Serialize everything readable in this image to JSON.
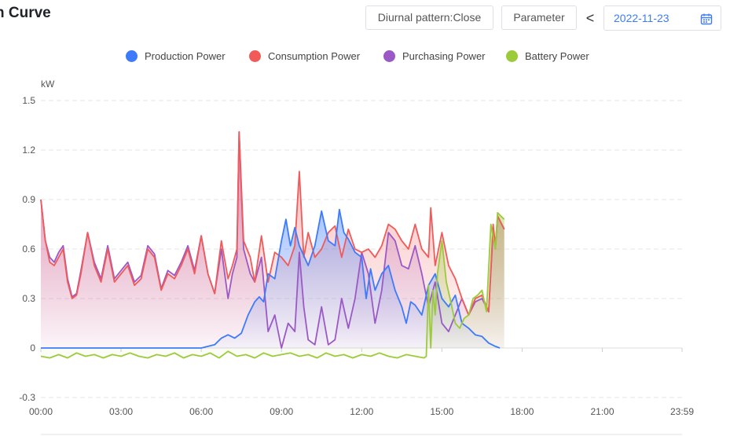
{
  "header": {
    "title": "n Curve",
    "pattern_button": "Diurnal pattern:Close",
    "parameter_button": "Parameter",
    "prev_icon": "chevron-left-icon",
    "date": "2022-11-23",
    "calendar_icon": "calendar-icon"
  },
  "legend": [
    {
      "label": "Production Power",
      "color": "#3e7bfa"
    },
    {
      "label": "Consumption Power",
      "color": "#f25a5a"
    },
    {
      "label": "Purchasing Power",
      "color": "#9b59c6"
    },
    {
      "label": "Battery Power",
      "color": "#9ccb3a"
    }
  ],
  "chart_data": {
    "type": "area",
    "y_unit": "kW",
    "ylim": [
      -0.3,
      1.5
    ],
    "y_ticks": [
      "1.5",
      "1.2",
      "0.9",
      "0.6",
      "0.3",
      "0",
      "-0.3"
    ],
    "x_range": [
      "00:00",
      "23:59"
    ],
    "x_ticks": [
      "00:00",
      "03:00",
      "06:00",
      "09:00",
      "12:00",
      "15:00",
      "18:00",
      "21:00",
      "23:59"
    ],
    "grid": "horizontal dashed",
    "legend_position": "top-center",
    "series": [
      {
        "name": "Production Power",
        "color": "#3e7bfa",
        "points": [
          [
            "00:00",
            0.0
          ],
          [
            "06:00",
            0.0
          ],
          [
            "06:30",
            0.02
          ],
          [
            "06:45",
            0.06
          ],
          [
            "07:00",
            0.08
          ],
          [
            "07:15",
            0.06
          ],
          [
            "07:30",
            0.09
          ],
          [
            "07:45",
            0.2
          ],
          [
            "08:00",
            0.28
          ],
          [
            "08:10",
            0.31
          ],
          [
            "08:20",
            0.28
          ],
          [
            "08:30",
            0.45
          ],
          [
            "08:45",
            0.42
          ],
          [
            "09:00",
            0.65
          ],
          [
            "09:10",
            0.78
          ],
          [
            "09:20",
            0.62
          ],
          [
            "09:30",
            0.73
          ],
          [
            "09:40",
            0.62
          ],
          [
            "10:00",
            0.5
          ],
          [
            "10:15",
            0.62
          ],
          [
            "10:30",
            0.83
          ],
          [
            "10:45",
            0.65
          ],
          [
            "11:00",
            0.62
          ],
          [
            "11:10",
            0.84
          ],
          [
            "11:20",
            0.7
          ],
          [
            "11:30",
            0.66
          ],
          [
            "11:45",
            0.58
          ],
          [
            "12:00",
            0.55
          ],
          [
            "12:10",
            0.3
          ],
          [
            "12:20",
            0.48
          ],
          [
            "12:30",
            0.35
          ],
          [
            "12:45",
            0.45
          ],
          [
            "13:00",
            0.5
          ],
          [
            "13:15",
            0.35
          ],
          [
            "13:30",
            0.25
          ],
          [
            "13:40",
            0.15
          ],
          [
            "13:50",
            0.28
          ],
          [
            "14:00",
            0.26
          ],
          [
            "14:15",
            0.2
          ],
          [
            "14:30",
            0.38
          ],
          [
            "14:45",
            0.45
          ],
          [
            "15:00",
            0.3
          ],
          [
            "15:15",
            0.25
          ],
          [
            "15:30",
            0.32
          ],
          [
            "15:45",
            0.15
          ],
          [
            "16:00",
            0.12
          ],
          [
            "16:15",
            0.08
          ],
          [
            "16:30",
            0.07
          ],
          [
            "16:45",
            0.03
          ],
          [
            "17:00",
            0.01
          ],
          [
            "17:10",
            0.0
          ]
        ]
      },
      {
        "name": "Consumption Power",
        "color": "#f25a5a",
        "points": [
          [
            "00:00",
            0.9
          ],
          [
            "00:10",
            0.65
          ],
          [
            "00:20",
            0.52
          ],
          [
            "00:30",
            0.5
          ],
          [
            "00:40",
            0.55
          ],
          [
            "00:50",
            0.6
          ],
          [
            "01:00",
            0.4
          ],
          [
            "01:10",
            0.3
          ],
          [
            "01:20",
            0.32
          ],
          [
            "01:30",
            0.45
          ],
          [
            "01:45",
            0.7
          ],
          [
            "02:00",
            0.5
          ],
          [
            "02:15",
            0.4
          ],
          [
            "02:30",
            0.6
          ],
          [
            "02:45",
            0.4
          ],
          [
            "03:00",
            0.45
          ],
          [
            "03:15",
            0.5
          ],
          [
            "03:30",
            0.38
          ],
          [
            "03:45",
            0.42
          ],
          [
            "04:00",
            0.6
          ],
          [
            "04:15",
            0.55
          ],
          [
            "04:30",
            0.35
          ],
          [
            "04:45",
            0.45
          ],
          [
            "05:00",
            0.42
          ],
          [
            "05:15",
            0.5
          ],
          [
            "05:30",
            0.6
          ],
          [
            "05:45",
            0.45
          ],
          [
            "06:00",
            0.68
          ],
          [
            "06:15",
            0.45
          ],
          [
            "06:30",
            0.33
          ],
          [
            "06:45",
            0.65
          ],
          [
            "07:00",
            0.42
          ],
          [
            "07:10",
            0.5
          ],
          [
            "07:20",
            0.6
          ],
          [
            "07:25",
            1.31
          ],
          [
            "07:35",
            0.65
          ],
          [
            "07:50",
            0.55
          ],
          [
            "08:00",
            0.4
          ],
          [
            "08:15",
            0.68
          ],
          [
            "08:30",
            0.4
          ],
          [
            "08:45",
            0.58
          ],
          [
            "09:00",
            0.55
          ],
          [
            "09:15",
            0.5
          ],
          [
            "09:30",
            0.62
          ],
          [
            "09:40",
            1.07
          ],
          [
            "09:50",
            0.55
          ],
          [
            "10:00",
            0.7
          ],
          [
            "10:15",
            0.55
          ],
          [
            "10:30",
            0.6
          ],
          [
            "10:45",
            0.7
          ],
          [
            "11:00",
            0.74
          ],
          [
            "11:15",
            0.55
          ],
          [
            "11:30",
            0.72
          ],
          [
            "11:45",
            0.6
          ],
          [
            "12:00",
            0.58
          ],
          [
            "12:15",
            0.6
          ],
          [
            "12:30",
            0.55
          ],
          [
            "12:45",
            0.62
          ],
          [
            "13:00",
            0.75
          ],
          [
            "13:15",
            0.72
          ],
          [
            "13:30",
            0.65
          ],
          [
            "13:45",
            0.6
          ],
          [
            "14:00",
            0.75
          ],
          [
            "14:15",
            0.6
          ],
          [
            "14:30",
            0.55
          ],
          [
            "14:35",
            0.85
          ],
          [
            "14:45",
            0.5
          ],
          [
            "15:00",
            0.7
          ],
          [
            "15:15",
            0.5
          ],
          [
            "15:30",
            0.42
          ],
          [
            "15:45",
            0.3
          ],
          [
            "16:00",
            0.2
          ],
          [
            "16:15",
            0.3
          ],
          [
            "16:30",
            0.32
          ],
          [
            "16:45",
            0.22
          ],
          [
            "16:55",
            0.75
          ],
          [
            "17:00",
            0.62
          ],
          [
            "17:05",
            0.8
          ],
          [
            "17:20",
            0.72
          ]
        ]
      },
      {
        "name": "Purchasing Power",
        "color": "#9b59c6",
        "points": [
          [
            "00:00",
            0.9
          ],
          [
            "00:10",
            0.65
          ],
          [
            "00:20",
            0.55
          ],
          [
            "00:30",
            0.52
          ],
          [
            "00:40",
            0.58
          ],
          [
            "00:50",
            0.62
          ],
          [
            "01:00",
            0.42
          ],
          [
            "01:10",
            0.31
          ],
          [
            "01:20",
            0.33
          ],
          [
            "01:30",
            0.47
          ],
          [
            "01:45",
            0.7
          ],
          [
            "02:00",
            0.52
          ],
          [
            "02:15",
            0.42
          ],
          [
            "02:30",
            0.62
          ],
          [
            "02:45",
            0.42
          ],
          [
            "03:00",
            0.47
          ],
          [
            "03:15",
            0.52
          ],
          [
            "03:30",
            0.4
          ],
          [
            "03:45",
            0.44
          ],
          [
            "04:00",
            0.62
          ],
          [
            "04:15",
            0.57
          ],
          [
            "04:30",
            0.36
          ],
          [
            "04:45",
            0.47
          ],
          [
            "05:00",
            0.44
          ],
          [
            "05:15",
            0.52
          ],
          [
            "05:30",
            0.62
          ],
          [
            "05:45",
            0.47
          ],
          [
            "06:00",
            0.68
          ],
          [
            "06:15",
            0.45
          ],
          [
            "06:30",
            0.33
          ],
          [
            "06:45",
            0.6
          ],
          [
            "07:00",
            0.3
          ],
          [
            "07:10",
            0.45
          ],
          [
            "07:20",
            0.55
          ],
          [
            "07:25",
            1.31
          ],
          [
            "07:35",
            0.6
          ],
          [
            "07:50",
            0.45
          ],
          [
            "08:00",
            0.4
          ],
          [
            "08:15",
            0.55
          ],
          [
            "08:30",
            0.1
          ],
          [
            "08:45",
            0.2
          ],
          [
            "09:00",
            0.0
          ],
          [
            "09:15",
            0.15
          ],
          [
            "09:30",
            0.1
          ],
          [
            "09:40",
            0.58
          ],
          [
            "09:50",
            0.25
          ],
          [
            "10:00",
            0.05
          ],
          [
            "10:15",
            0.02
          ],
          [
            "10:30",
            0.25
          ],
          [
            "10:45",
            0.02
          ],
          [
            "11:00",
            0.05
          ],
          [
            "11:15",
            0.3
          ],
          [
            "11:30",
            0.12
          ],
          [
            "11:45",
            0.3
          ],
          [
            "12:00",
            0.58
          ],
          [
            "12:15",
            0.45
          ],
          [
            "12:30",
            0.15
          ],
          [
            "12:45",
            0.35
          ],
          [
            "13:00",
            0.7
          ],
          [
            "13:15",
            0.65
          ],
          [
            "13:30",
            0.5
          ],
          [
            "13:45",
            0.48
          ],
          [
            "14:00",
            0.62
          ],
          [
            "14:15",
            0.45
          ],
          [
            "14:30",
            0.25
          ],
          [
            "14:45",
            0.4
          ],
          [
            "15:00",
            0.15
          ],
          [
            "15:15",
            0.1
          ],
          [
            "15:30",
            0.2
          ],
          [
            "15:45",
            0.3
          ],
          [
            "16:00",
            0.2
          ],
          [
            "16:15",
            0.28
          ],
          [
            "16:30",
            0.3
          ],
          [
            "16:45",
            0.22
          ],
          [
            "16:55",
            0.72
          ],
          [
            "17:00",
            0.6
          ],
          [
            "17:05",
            0.8
          ],
          [
            "17:20",
            0.72
          ]
        ]
      },
      {
        "name": "Battery Power",
        "color": "#9ccb3a",
        "points": [
          [
            "00:00",
            -0.05
          ],
          [
            "00:20",
            -0.06
          ],
          [
            "00:40",
            -0.04
          ],
          [
            "01:00",
            -0.06
          ],
          [
            "01:20",
            -0.03
          ],
          [
            "01:40",
            -0.05
          ],
          [
            "02:00",
            -0.04
          ],
          [
            "02:20",
            -0.06
          ],
          [
            "02:40",
            -0.04
          ],
          [
            "03:00",
            -0.05
          ],
          [
            "03:20",
            -0.03
          ],
          [
            "03:40",
            -0.05
          ],
          [
            "04:00",
            -0.06
          ],
          [
            "04:20",
            -0.04
          ],
          [
            "04:40",
            -0.05
          ],
          [
            "05:00",
            -0.03
          ],
          [
            "05:20",
            -0.06
          ],
          [
            "05:40",
            -0.04
          ],
          [
            "06:00",
            -0.05
          ],
          [
            "06:20",
            -0.03
          ],
          [
            "06:40",
            -0.06
          ],
          [
            "07:00",
            -0.02
          ],
          [
            "07:20",
            -0.05
          ],
          [
            "07:40",
            -0.04
          ],
          [
            "08:00",
            -0.06
          ],
          [
            "08:20",
            -0.03
          ],
          [
            "08:40",
            -0.05
          ],
          [
            "09:00",
            -0.04
          ],
          [
            "09:20",
            -0.03
          ],
          [
            "09:40",
            -0.05
          ],
          [
            "10:00",
            -0.04
          ],
          [
            "10:20",
            -0.06
          ],
          [
            "10:40",
            -0.03
          ],
          [
            "11:00",
            -0.05
          ],
          [
            "11:20",
            -0.04
          ],
          [
            "11:40",
            -0.06
          ],
          [
            "12:00",
            -0.04
          ],
          [
            "12:20",
            -0.05
          ],
          [
            "12:40",
            -0.03
          ],
          [
            "13:00",
            -0.05
          ],
          [
            "13:20",
            -0.06
          ],
          [
            "13:40",
            -0.04
          ],
          [
            "14:00",
            -0.05
          ],
          [
            "14:20",
            -0.06
          ],
          [
            "14:25",
            -0.05
          ],
          [
            "14:30",
            0.38
          ],
          [
            "14:35",
            0.0
          ],
          [
            "14:40",
            0.35
          ],
          [
            "14:45",
            0.2
          ],
          [
            "14:50",
            0.45
          ],
          [
            "15:00",
            0.65
          ],
          [
            "15:10",
            0.4
          ],
          [
            "15:20",
            0.28
          ],
          [
            "15:30",
            0.15
          ],
          [
            "15:40",
            0.12
          ],
          [
            "15:50",
            0.18
          ],
          [
            "16:00",
            0.2
          ],
          [
            "16:10",
            0.3
          ],
          [
            "16:20",
            0.32
          ],
          [
            "16:30",
            0.35
          ],
          [
            "16:40",
            0.22
          ],
          [
            "16:50",
            0.75
          ],
          [
            "17:00",
            0.6
          ],
          [
            "17:05",
            0.82
          ],
          [
            "17:20",
            0.78
          ]
        ]
      }
    ]
  }
}
